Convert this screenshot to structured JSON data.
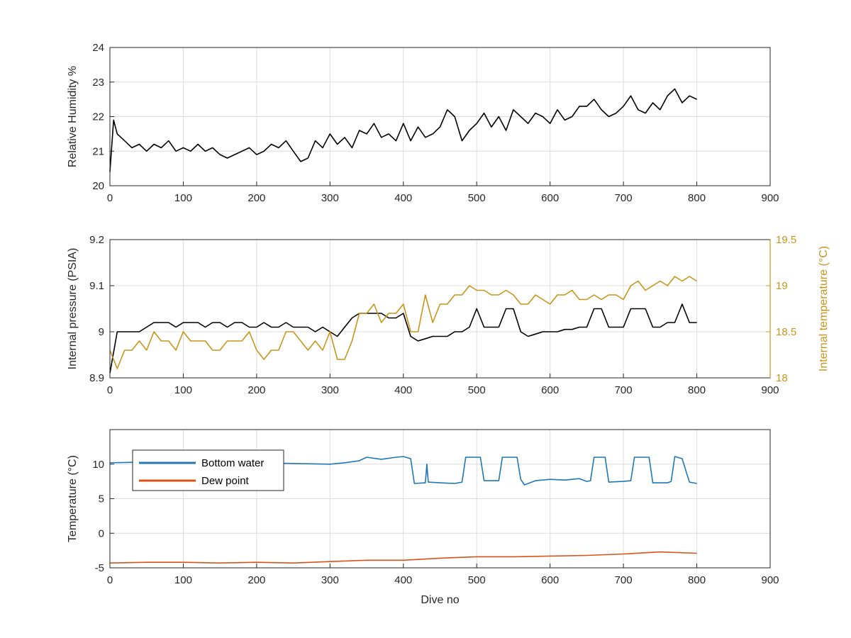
{
  "colors": {
    "black_series": "#000000",
    "gold_series": "#c8941a",
    "blue_series": "#1f77b4",
    "orange_series": "#d95319",
    "grid": "#dcdcdc",
    "axis": "#262626"
  },
  "chart_data": [
    {
      "type": "line",
      "title": "",
      "xlabel": "",
      "ylabel": "Relative Humidity %",
      "xlim": [
        0,
        900
      ],
      "ylim": [
        20,
        24
      ],
      "xticks": [
        "0",
        "100",
        "200",
        "300",
        "400",
        "500",
        "600",
        "700",
        "800",
        "900"
      ],
      "yticks": [
        "20",
        "21",
        "22",
        "23",
        "24"
      ],
      "grid": true,
      "series": [
        {
          "name": "",
          "x": [
            0,
            5,
            10,
            20,
            30,
            40,
            50,
            60,
            70,
            80,
            90,
            100,
            110,
            120,
            130,
            140,
            150,
            160,
            170,
            180,
            190,
            200,
            210,
            220,
            230,
            240,
            250,
            260,
            270,
            280,
            290,
            300,
            310,
            320,
            330,
            340,
            350,
            360,
            370,
            380,
            390,
            400,
            410,
            420,
            430,
            440,
            450,
            460,
            470,
            480,
            490,
            500,
            510,
            520,
            530,
            540,
            550,
            560,
            570,
            580,
            590,
            600,
            610,
            620,
            630,
            640,
            650,
            660,
            670,
            680,
            690,
            700,
            710,
            720,
            730,
            740,
            750,
            760,
            770,
            780,
            790,
            800
          ],
          "y": [
            20.4,
            21.9,
            21.5,
            21.3,
            21.1,
            21.2,
            21.0,
            21.2,
            21.1,
            21.3,
            21.0,
            21.1,
            21.0,
            21.2,
            21.0,
            21.1,
            20.9,
            20.8,
            20.9,
            21.0,
            21.1,
            20.9,
            21.0,
            21.2,
            21.1,
            21.3,
            21.0,
            20.7,
            20.8,
            21.3,
            21.1,
            21.5,
            21.2,
            21.4,
            21.1,
            21.6,
            21.5,
            21.8,
            21.4,
            21.5,
            21.3,
            21.8,
            21.3,
            21.7,
            21.4,
            21.5,
            21.7,
            22.2,
            22.0,
            21.3,
            21.6,
            21.8,
            22.1,
            21.7,
            22.0,
            21.6,
            22.2,
            22.0,
            21.8,
            22.1,
            22.0,
            21.8,
            22.2,
            21.9,
            22.0,
            22.3,
            22.3,
            22.5,
            22.2,
            22.0,
            22.1,
            22.3,
            22.6,
            22.2,
            22.1,
            22.4,
            22.2,
            22.6,
            22.8,
            22.4,
            22.6,
            22.5
          ]
        }
      ]
    },
    {
      "type": "line",
      "title": "",
      "xlabel": "",
      "ylabel": "Internal pressure (PSIA)",
      "y2label": "Internal temperature (°C)",
      "xlim": [
        0,
        900
      ],
      "ylim": [
        8.9,
        9.2
      ],
      "y2lim": [
        18,
        19.5
      ],
      "xticks": [
        "0",
        "100",
        "200",
        "300",
        "400",
        "500",
        "600",
        "700",
        "800",
        "900"
      ],
      "yticks": [
        "8.9",
        "9",
        "9.1",
        "9.2"
      ],
      "y2ticks": [
        "18",
        "18.5",
        "19",
        "19.5"
      ],
      "grid": true,
      "series": [
        {
          "name": "",
          "axis": "left",
          "x": [
            0,
            10,
            20,
            30,
            40,
            50,
            60,
            70,
            80,
            90,
            100,
            110,
            120,
            130,
            140,
            150,
            160,
            170,
            180,
            190,
            200,
            210,
            220,
            230,
            240,
            250,
            260,
            270,
            280,
            290,
            300,
            310,
            320,
            330,
            340,
            350,
            360,
            370,
            380,
            390,
            400,
            410,
            420,
            430,
            440,
            450,
            460,
            470,
            480,
            490,
            500,
            510,
            520,
            530,
            540,
            550,
            560,
            570,
            580,
            590,
            600,
            610,
            620,
            630,
            640,
            650,
            660,
            670,
            680,
            690,
            700,
            710,
            720,
            730,
            740,
            750,
            760,
            770,
            780,
            790,
            800
          ],
          "y": [
            8.91,
            9.0,
            9.0,
            9.0,
            9.0,
            9.01,
            9.02,
            9.02,
            9.02,
            9.01,
            9.02,
            9.02,
            9.02,
            9.01,
            9.02,
            9.02,
            9.01,
            9.02,
            9.02,
            9.01,
            9.01,
            9.02,
            9.01,
            9.01,
            9.02,
            9.01,
            9.01,
            9.01,
            9.0,
            9.01,
            9.0,
            8.99,
            9.01,
            9.03,
            9.04,
            9.04,
            9.04,
            9.04,
            9.03,
            9.03,
            9.04,
            8.99,
            8.98,
            8.985,
            8.99,
            8.99,
            8.99,
            9.0,
            9.0,
            9.01,
            9.05,
            9.01,
            9.01,
            9.01,
            9.05,
            9.05,
            9.0,
            8.99,
            8.995,
            9.0,
            9.0,
            9.0,
            9.005,
            9.005,
            9.01,
            9.01,
            9.05,
            9.05,
            9.01,
            9.01,
            9.01,
            9.05,
            9.05,
            9.05,
            9.01,
            9.01,
            9.02,
            9.02,
            9.06,
            9.02,
            9.02
          ]
        },
        {
          "name": "",
          "axis": "right",
          "x": [
            0,
            10,
            20,
            30,
            40,
            50,
            60,
            70,
            80,
            90,
            100,
            110,
            120,
            130,
            140,
            150,
            160,
            170,
            180,
            190,
            200,
            210,
            220,
            230,
            240,
            250,
            260,
            270,
            280,
            290,
            300,
            310,
            320,
            330,
            340,
            350,
            360,
            370,
            380,
            390,
            400,
            410,
            420,
            430,
            440,
            450,
            460,
            470,
            480,
            490,
            500,
            510,
            520,
            530,
            540,
            550,
            560,
            570,
            580,
            590,
            600,
            610,
            620,
            630,
            640,
            650,
            660,
            670,
            680,
            690,
            700,
            710,
            720,
            730,
            740,
            750,
            760,
            770,
            780,
            790,
            800
          ],
          "y": [
            18.3,
            18.1,
            18.3,
            18.3,
            18.4,
            18.3,
            18.5,
            18.4,
            18.4,
            18.3,
            18.5,
            18.4,
            18.4,
            18.4,
            18.3,
            18.3,
            18.4,
            18.4,
            18.4,
            18.5,
            18.3,
            18.2,
            18.3,
            18.3,
            18.5,
            18.5,
            18.4,
            18.3,
            18.4,
            18.3,
            18.5,
            18.2,
            18.2,
            18.4,
            18.7,
            18.7,
            18.8,
            18.6,
            18.7,
            18.7,
            18.8,
            18.5,
            18.5,
            18.9,
            18.6,
            18.8,
            18.8,
            18.9,
            18.9,
            19.0,
            18.95,
            18.95,
            18.9,
            18.9,
            18.95,
            18.9,
            18.8,
            18.8,
            18.9,
            18.85,
            18.8,
            18.9,
            18.9,
            18.95,
            18.85,
            18.85,
            18.9,
            18.85,
            18.9,
            18.9,
            18.85,
            19.0,
            19.05,
            18.95,
            19.0,
            19.05,
            19.0,
            19.1,
            19.05,
            19.1,
            19.05
          ]
        }
      ]
    },
    {
      "type": "line",
      "title": "",
      "xlabel": "Dive no",
      "ylabel": "Temperature (°C)",
      "xlim": [
        0,
        900
      ],
      "ylim": [
        -5,
        15
      ],
      "xticks": [
        "0",
        "100",
        "200",
        "300",
        "400",
        "500",
        "600",
        "700",
        "800",
        "900"
      ],
      "yticks": [
        "-5",
        "0",
        "5",
        "10"
      ],
      "grid": true,
      "legend": {
        "placement": "top-left",
        "entries": [
          "Bottom water",
          "Dew point"
        ]
      },
      "series": [
        {
          "name": "Bottom water",
          "x": [
            0,
            50,
            100,
            150,
            200,
            250,
            300,
            320,
            340,
            350,
            370,
            390,
            400,
            410,
            415,
            430,
            432,
            434,
            450,
            470,
            480,
            485,
            505,
            510,
            530,
            535,
            555,
            560,
            565,
            580,
            600,
            620,
            640,
            650,
            655,
            660,
            675,
            680,
            700,
            710,
            715,
            735,
            740,
            760,
            765,
            770,
            780,
            790,
            800
          ],
          "y": [
            10.2,
            10.3,
            10.4,
            10.2,
            10.2,
            10.1,
            10.0,
            10.2,
            10.5,
            11.0,
            10.7,
            11.0,
            11.1,
            10.8,
            7.2,
            7.3,
            10.0,
            7.4,
            7.3,
            7.2,
            7.4,
            11.0,
            11.0,
            7.6,
            7.6,
            11.0,
            11.0,
            7.8,
            7.0,
            7.6,
            7.8,
            7.7,
            7.9,
            7.5,
            7.6,
            11.0,
            11.0,
            7.4,
            7.5,
            7.6,
            11.0,
            11.0,
            7.3,
            7.3,
            7.5,
            11.1,
            10.8,
            7.4,
            7.2
          ]
        },
        {
          "name": "Dew point",
          "x": [
            0,
            50,
            100,
            150,
            200,
            250,
            300,
            350,
            400,
            450,
            500,
            550,
            600,
            650,
            700,
            750,
            800
          ],
          "y": [
            -4.3,
            -4.2,
            -4.2,
            -4.3,
            -4.2,
            -4.3,
            -4.1,
            -3.9,
            -3.9,
            -3.6,
            -3.4,
            -3.4,
            -3.3,
            -3.2,
            -3.0,
            -2.7,
            -2.9
          ]
        }
      ]
    }
  ]
}
